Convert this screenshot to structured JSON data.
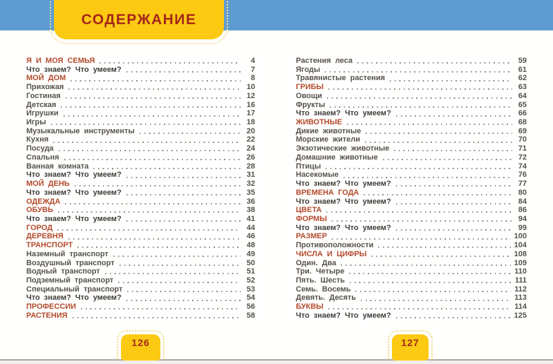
{
  "header": {
    "title": "СОДЕРЖАНИЕ"
  },
  "footer": {
    "left_page_number": "126",
    "right_page_number": "127"
  },
  "colors": {
    "top_bar_blue": "#5d9bd1",
    "badge_yellow": "#fcca12",
    "title_red": "#a6271a",
    "section_red": "#b34a2b",
    "body_text": "#57514b",
    "bold_text": "#3f3b38",
    "leader_gray": "#8e8a85"
  },
  "toc": {
    "left": [
      {
        "label": "Я И МОЯ СЕМЬЯ",
        "page": "4",
        "type": "section"
      },
      {
        "label": "Что знаем? Что умеем?",
        "page": "7",
        "type": "know"
      },
      {
        "label": "МОЙ ДОМ",
        "page": "8",
        "type": "section"
      },
      {
        "label": "Прихожая",
        "page": "10",
        "type": "sub"
      },
      {
        "label": "Гостиная",
        "page": "12",
        "type": "sub"
      },
      {
        "label": "Детская",
        "page": "16",
        "type": "sub"
      },
      {
        "label": "Игрушки",
        "page": "17",
        "type": "sub"
      },
      {
        "label": "Игры",
        "page": "18",
        "type": "sub"
      },
      {
        "label": "Музыкальные инструменты",
        "page": "20",
        "type": "sub"
      },
      {
        "label": "Кухня",
        "page": "22",
        "type": "sub"
      },
      {
        "label": "Посуда",
        "page": "24",
        "type": "sub"
      },
      {
        "label": "Спальня",
        "page": "26",
        "type": "sub"
      },
      {
        "label": "Ванная комната",
        "page": "28",
        "type": "sub"
      },
      {
        "label": "Что знаем? Что умеем?",
        "page": "31",
        "type": "know"
      },
      {
        "label": "МОЙ ДЕНЬ",
        "page": "32",
        "type": "section"
      },
      {
        "label": "Что знаем? Что умеем?",
        "page": "35",
        "type": "know"
      },
      {
        "label": "ОДЕЖДА",
        "page": "36",
        "type": "section"
      },
      {
        "label": "ОБУВЬ",
        "page": "38",
        "type": "section"
      },
      {
        "label": "Что знаем? Что умеем?",
        "page": "41",
        "type": "know"
      },
      {
        "label": "ГОРОД",
        "page": "44",
        "type": "section"
      },
      {
        "label": "ДЕРЕВНЯ",
        "page": "46",
        "type": "section"
      },
      {
        "label": "ТРАНСПОРТ",
        "page": "48",
        "type": "section"
      },
      {
        "label": "Наземный транспорт",
        "page": "49",
        "type": "sub"
      },
      {
        "label": "Воздушный транспорт",
        "page": "50",
        "type": "sub"
      },
      {
        "label": "Водный транспорт",
        "page": "51",
        "type": "sub"
      },
      {
        "label": "Подземный транспорт",
        "page": "52",
        "type": "sub"
      },
      {
        "label": "Специальный транспорт",
        "page": "53",
        "type": "sub"
      },
      {
        "label": "Что знаем? Что умеем?",
        "page": "54",
        "type": "know"
      },
      {
        "label": "ПРОФЕССИИ",
        "page": "56",
        "type": "section"
      },
      {
        "label": "РАСТЕНИЯ",
        "page": "58",
        "type": "section"
      }
    ],
    "right": [
      {
        "label": "Растения леса",
        "page": "59",
        "type": "sub"
      },
      {
        "label": "Ягоды",
        "page": "61",
        "type": "sub"
      },
      {
        "label": "Травянистые растения",
        "page": "62",
        "type": "sub"
      },
      {
        "label": "ГРИБЫ",
        "page": "63",
        "type": "section"
      },
      {
        "label": "Овощи",
        "page": "64",
        "type": "sub"
      },
      {
        "label": "Фрукты",
        "page": "65",
        "type": "sub"
      },
      {
        "label": "Что знаем? Что умеем?",
        "page": "66",
        "type": "know"
      },
      {
        "label": "ЖИВОТНЫЕ",
        "page": "68",
        "type": "section"
      },
      {
        "label": "Дикие животные",
        "page": "69",
        "type": "sub"
      },
      {
        "label": "Морские жители",
        "page": "70",
        "type": "sub"
      },
      {
        "label": "Экзотические животные",
        "page": "71",
        "type": "sub"
      },
      {
        "label": "Домашние животные",
        "page": "72",
        "type": "sub"
      },
      {
        "label": "Птицы",
        "page": "74",
        "type": "sub"
      },
      {
        "label": "Насекомые",
        "page": "76",
        "type": "sub"
      },
      {
        "label": "Что знаем? Что умеем?",
        "page": "77",
        "type": "know"
      },
      {
        "label": "ВРЕМЕНА ГОДА",
        "page": "80",
        "type": "section"
      },
      {
        "label": "Что знаем? Что умеем?",
        "page": "84",
        "type": "know"
      },
      {
        "label": "ЦВЕТА",
        "page": "86",
        "type": "section"
      },
      {
        "label": "ФОРМЫ",
        "page": "94",
        "type": "section"
      },
      {
        "label": "Что знаем? Что умеем?",
        "page": "99",
        "type": "know"
      },
      {
        "label": "РАЗМЕР",
        "page": "100",
        "type": "section"
      },
      {
        "label": "Противоположности",
        "page": "104",
        "type": "sub"
      },
      {
        "label": "ЧИСЛА И ЦИФРЫ",
        "page": "108",
        "type": "section"
      },
      {
        "label": "Один. Два",
        "page": "109",
        "type": "sub"
      },
      {
        "label": "Три. Четыре",
        "page": "110",
        "type": "sub"
      },
      {
        "label": "Пять. Шесть",
        "page": "111",
        "type": "sub"
      },
      {
        "label": "Семь. Восемь",
        "page": "112",
        "type": "sub"
      },
      {
        "label": "Девять. Десять",
        "page": "113",
        "type": "sub"
      },
      {
        "label": "БУКВЫ",
        "page": "114",
        "type": "section"
      },
      {
        "label": "Что знаем? Что умеем?",
        "page": "125",
        "type": "know"
      }
    ]
  }
}
